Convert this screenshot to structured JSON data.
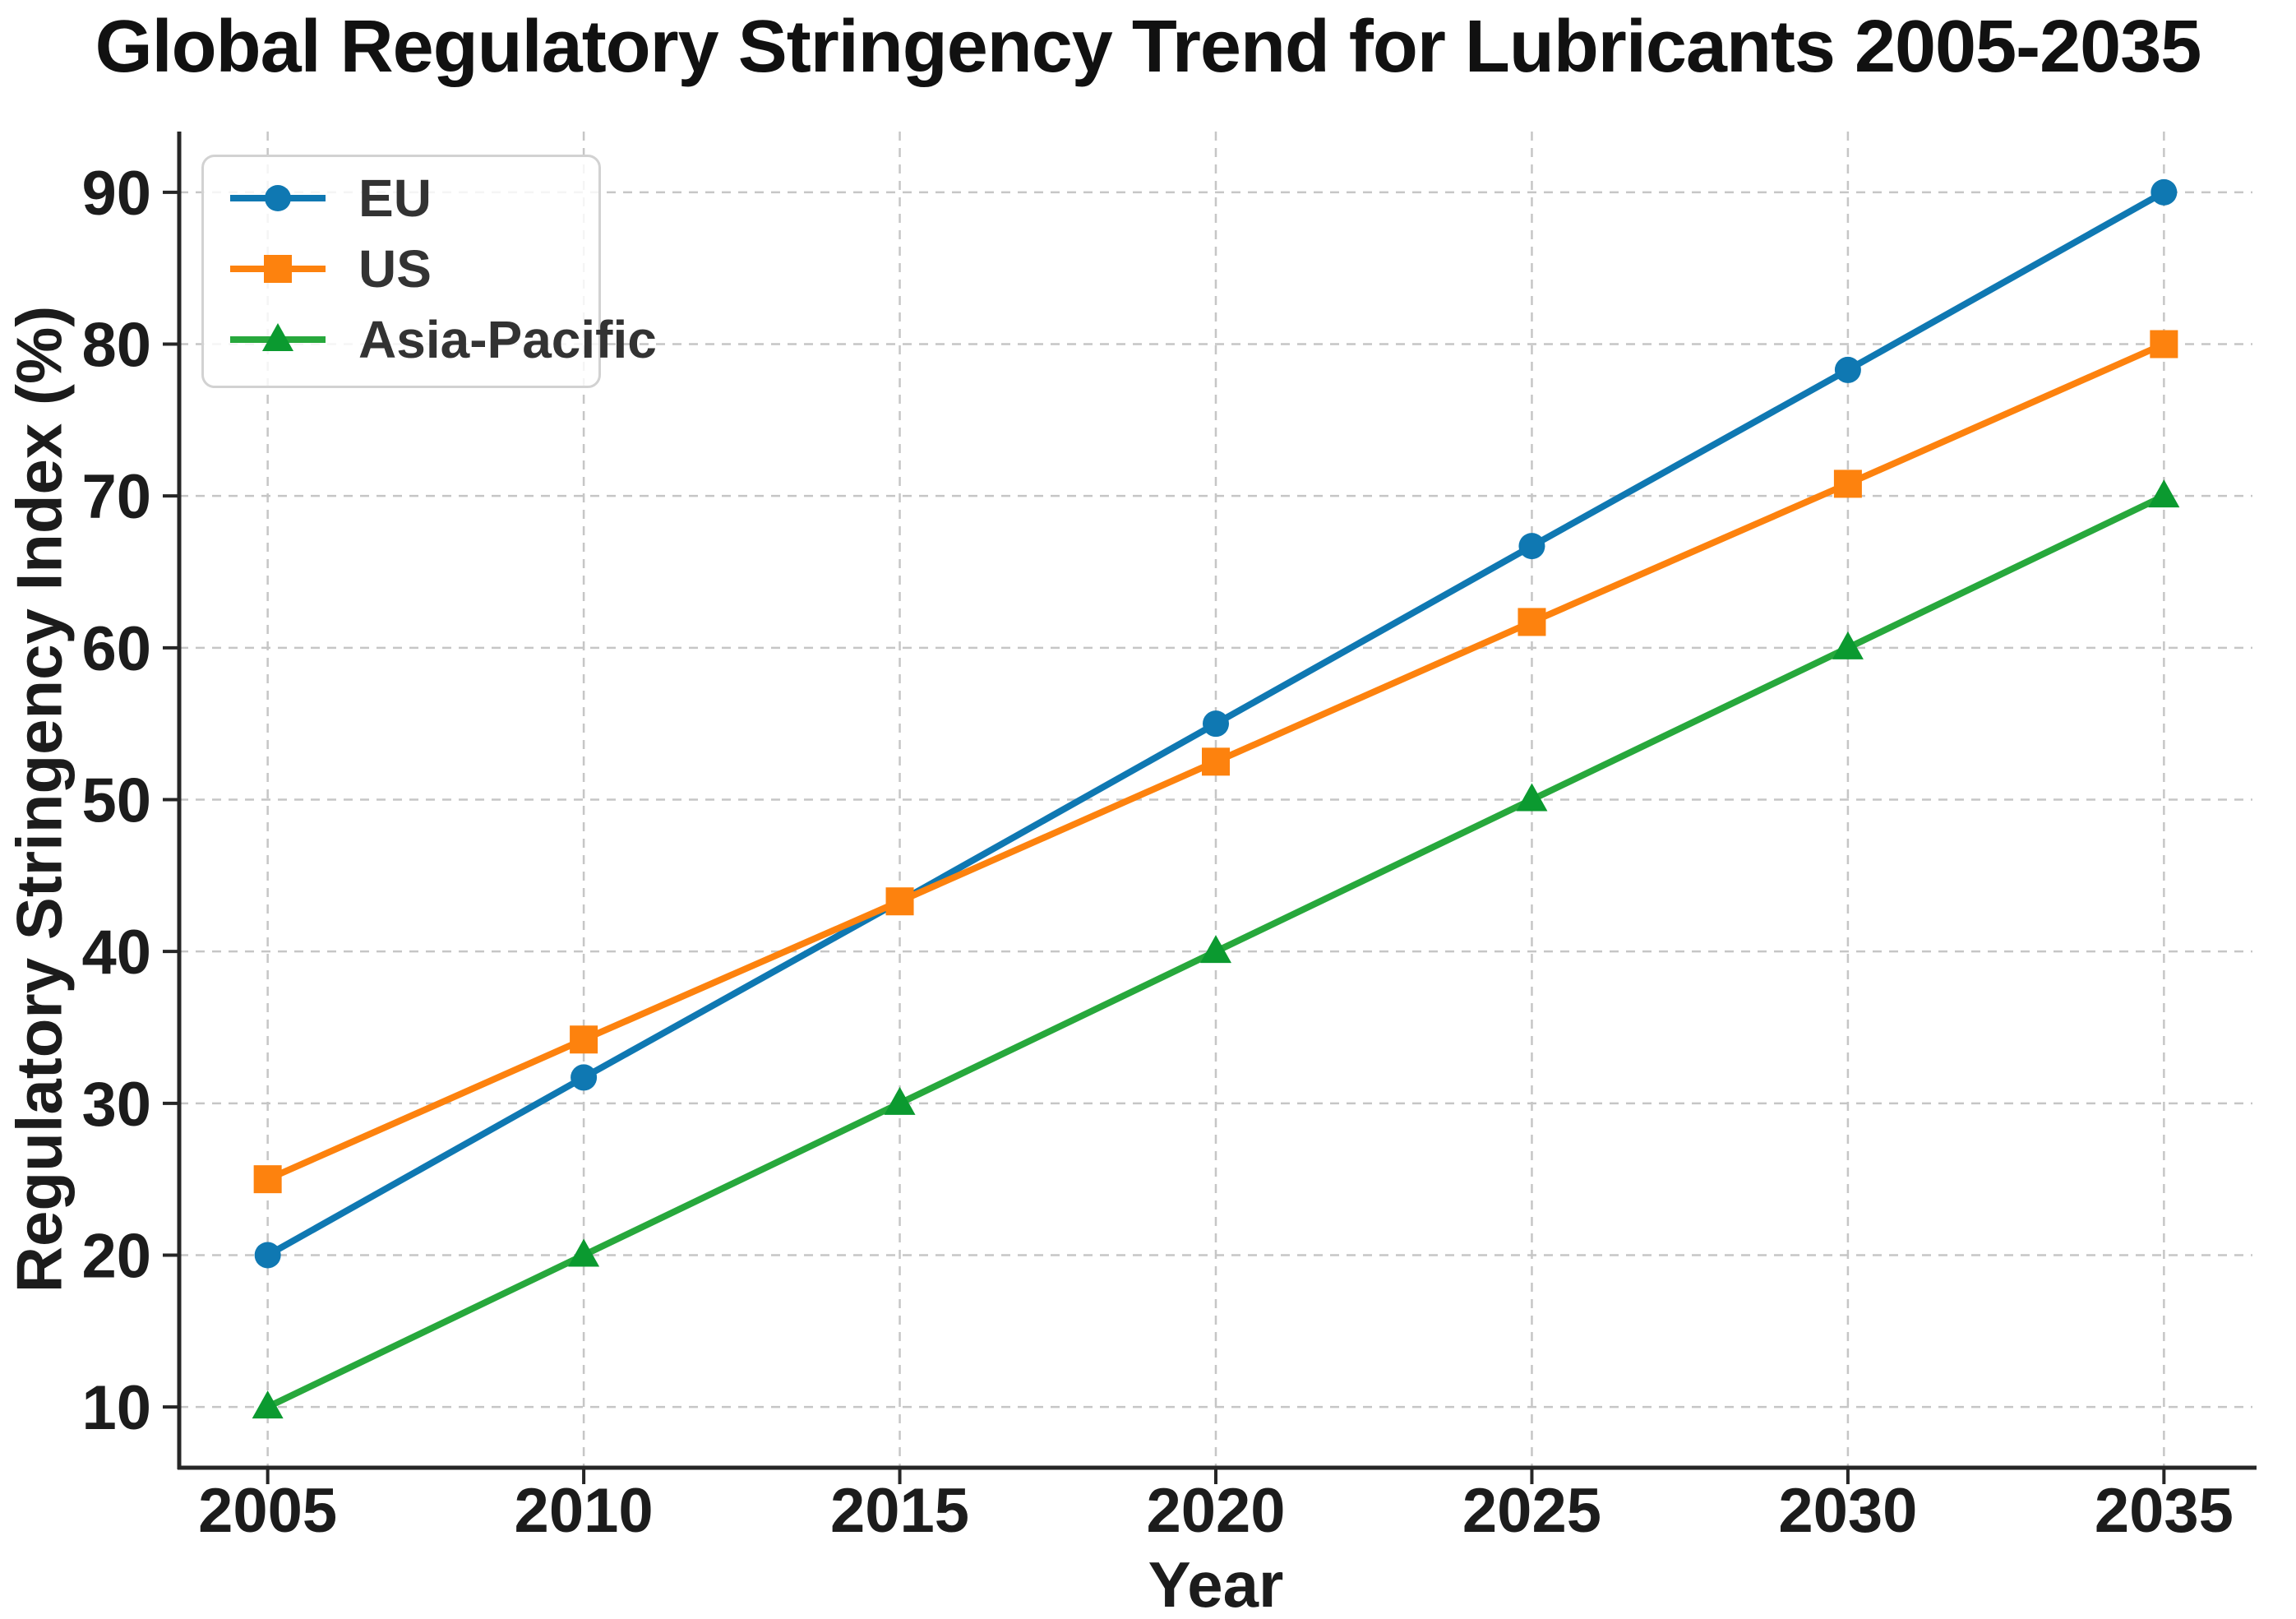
{
  "chart_data": {
    "type": "line",
    "title": "Global Regulatory Stringency Trend for Lubricants 2005-2035",
    "xlabel": "Year",
    "ylabel": "Regulatory Stringency Index (%)",
    "x": [
      2005,
      2010,
      2015,
      2020,
      2025,
      2030,
      2035
    ],
    "series": [
      {
        "name": "EU",
        "color": "#0f78b2",
        "marker": "circle",
        "values": [
          20,
          31.7,
          43.3,
          55,
          66.7,
          78.3,
          90
        ]
      },
      {
        "name": "US",
        "color": "#fd820e",
        "marker": "square",
        "values": [
          25,
          34.2,
          43.3,
          52.5,
          61.7,
          70.8,
          80
        ]
      },
      {
        "name": "Asia-Pacific",
        "color": "#27a83c",
        "marker": "triangle",
        "marker_color": "#0b9a30",
        "values": [
          10,
          20,
          30,
          40,
          50,
          60,
          70
        ]
      }
    ],
    "xticks": [
      2005,
      2010,
      2015,
      2020,
      2025,
      2030,
      2035
    ],
    "yticks": [
      10,
      20,
      30,
      40,
      50,
      60,
      70,
      80,
      90
    ],
    "xlim": [
      2003.6,
      2036.4
    ],
    "ylim": [
      6,
      94
    ],
    "grid": true,
    "grid_color": "#c6c6c6",
    "legend_position": "upper-left"
  }
}
